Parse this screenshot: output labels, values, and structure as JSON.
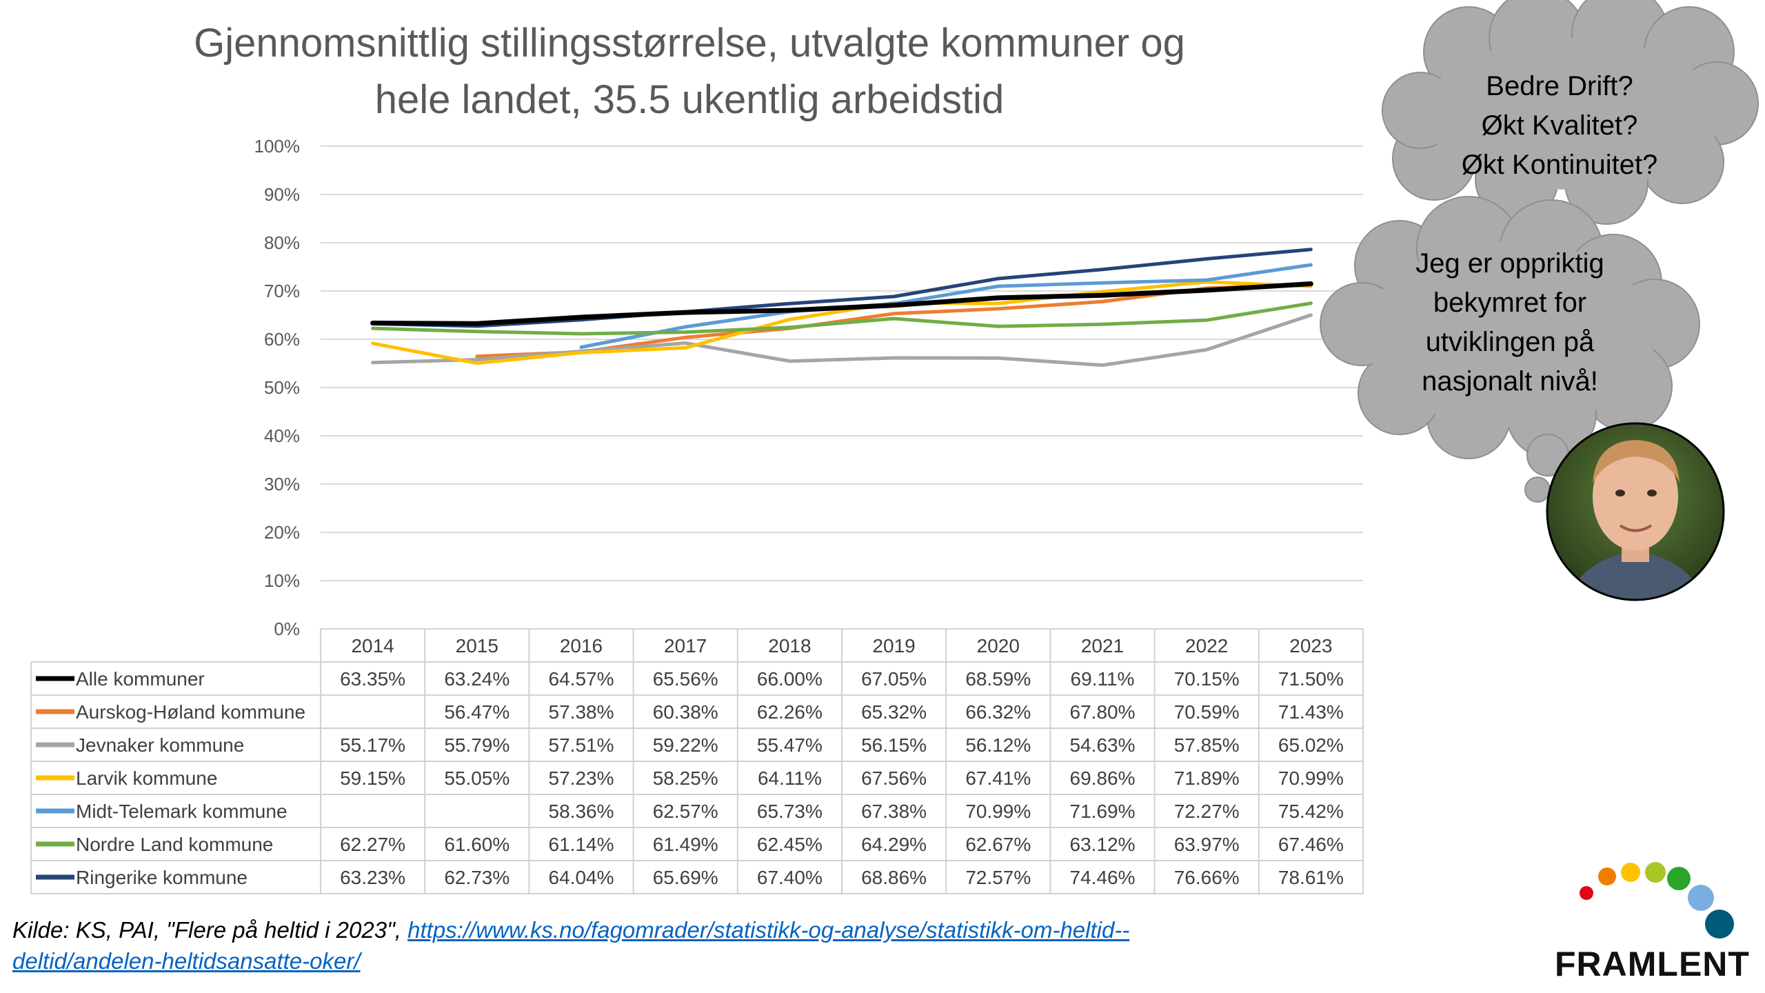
{
  "title_line1": "Gjennomsnittlig stillingsstørrelse, utvalgte kommuner og",
  "title_line2": "hele landet, 35.5 ukentlig arbeidstid",
  "source": {
    "prefix": "Kilde: KS, PAI, \"Flere på heltid i 2023\", ",
    "link_line1": "https://www.ks.no/fagomrader/statistikk-og-analyse/statistikk-om-heltid--",
    "link_line2": "deltid/andelen-heltidsansatte-oker/"
  },
  "thought_bubble_top": [
    "Bedre Drift?",
    "Økt Kvalitet?",
    "Økt Kontinuitet?"
  ],
  "thought_bubble_bottom": [
    "Jeg er oppriktig",
    "bekymret for",
    "utviklingen på",
    "nasjonalt nivå!"
  ],
  "logo": {
    "text": "FRAMLENT",
    "dot_colors": [
      "#e30613",
      "#f07d00",
      "#fdc300",
      "#a8c628",
      "#2aa52a",
      "#7aaee0",
      "#005a78"
    ]
  },
  "chart_data": {
    "type": "line",
    "title": "Gjennomsnittlig stillingsstørrelse, utvalgte kommuner og hele landet, 35.5 ukentlig arbeidstid",
    "categories": [
      "2014",
      "2015",
      "2016",
      "2017",
      "2018",
      "2019",
      "2020",
      "2021",
      "2022",
      "2023"
    ],
    "ylim": [
      0,
      100
    ],
    "yticks": [
      "0%",
      "10%",
      "20%",
      "30%",
      "40%",
      "50%",
      "60%",
      "70%",
      "80%",
      "90%",
      "100%"
    ],
    "grid": true,
    "legend": "data-table",
    "series": [
      {
        "name": "Alle kommuner",
        "color": "#000000",
        "values": [
          63.35,
          63.24,
          64.57,
          65.56,
          66.0,
          67.05,
          68.59,
          69.11,
          70.15,
          71.5
        ],
        "labels": [
          "63.35%",
          "63.24%",
          "64.57%",
          "65.56%",
          "66.00%",
          "67.05%",
          "68.59%",
          "69.11%",
          "70.15%",
          "71.50%"
        ]
      },
      {
        "name": "Aurskog-Høland kommune",
        "color": "#ed7d31",
        "values": [
          null,
          56.47,
          57.38,
          60.38,
          62.26,
          65.32,
          66.32,
          67.8,
          70.59,
          71.43
        ],
        "labels": [
          "",
          "56.47%",
          "57.38%",
          "60.38%",
          "62.26%",
          "65.32%",
          "66.32%",
          "67.80%",
          "70.59%",
          "71.43%"
        ]
      },
      {
        "name": "Jevnaker kommune",
        "color": "#a5a5a5",
        "values": [
          55.17,
          55.79,
          57.51,
          59.22,
          55.47,
          56.15,
          56.12,
          54.63,
          57.85,
          65.02
        ],
        "labels": [
          "55.17%",
          "55.79%",
          "57.51%",
          "59.22%",
          "55.47%",
          "56.15%",
          "56.12%",
          "54.63%",
          "57.85%",
          "65.02%"
        ]
      },
      {
        "name": "Larvik kommune",
        "color": "#ffc000",
        "values": [
          59.15,
          55.05,
          57.23,
          58.25,
          64.11,
          67.56,
          67.41,
          69.86,
          71.89,
          70.99
        ],
        "labels": [
          "59.15%",
          "55.05%",
          "57.23%",
          "58.25%",
          "64.11%",
          "67.56%",
          "67.41%",
          "69.86%",
          "71.89%",
          "70.99%"
        ]
      },
      {
        "name": "Midt-Telemark kommune",
        "color": "#5b9bd5",
        "values": [
          null,
          null,
          58.36,
          62.57,
          65.73,
          67.38,
          70.99,
          71.69,
          72.27,
          75.42
        ],
        "labels": [
          "",
          "",
          "58.36%",
          "62.57%",
          "65.73%",
          "67.38%",
          "70.99%",
          "71.69%",
          "72.27%",
          "75.42%"
        ]
      },
      {
        "name": "Nordre Land kommune",
        "color": "#70ad47",
        "values": [
          62.27,
          61.6,
          61.14,
          61.49,
          62.45,
          64.29,
          62.67,
          63.12,
          63.97,
          67.46
        ],
        "labels": [
          "62.27%",
          "61.60%",
          "61.14%",
          "61.49%",
          "62.45%",
          "64.29%",
          "62.67%",
          "63.12%",
          "63.97%",
          "67.46%"
        ]
      },
      {
        "name": "Ringerike kommune",
        "color": "#264478",
        "values": [
          63.23,
          62.73,
          64.04,
          65.69,
          67.4,
          68.86,
          72.57,
          74.46,
          76.66,
          78.61
        ],
        "labels": [
          "63.23%",
          "62.73%",
          "64.04%",
          "65.69%",
          "67.40%",
          "68.86%",
          "72.57%",
          "74.46%",
          "76.66%",
          "78.61%"
        ]
      }
    ]
  }
}
